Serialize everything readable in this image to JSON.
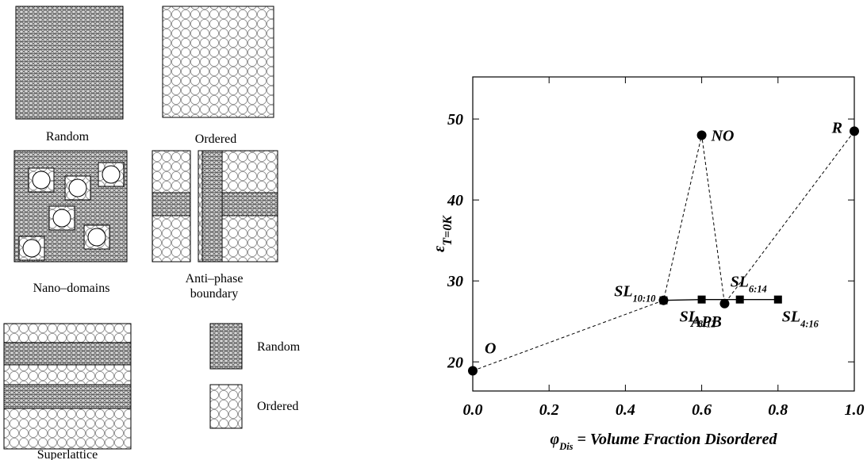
{
  "diagram": {
    "panels": [
      {
        "label": "Random"
      },
      {
        "label": "Ordered"
      },
      {
        "label": "Nano–domains"
      },
      {
        "label": [
          "Anti–phase",
          "boundary"
        ]
      },
      {
        "label": "Superlattice"
      }
    ],
    "legend": [
      "Random",
      "Ordered"
    ]
  },
  "chart_data": {
    "type": "line",
    "x_label": {
      "text": "φ",
      "sub": "Dis",
      "rest": " = Volume Fraction Disordered"
    },
    "y_label": {
      "text": "ε",
      "sub": "T=0K"
    },
    "xlim": [
      0,
      1
    ],
    "ylim": [
      16.4,
      55.2
    ],
    "xticks": [
      {
        "value": 0,
        "label": "0.0"
      },
      0.2,
      0.4,
      0.6,
      0.8,
      {
        "value": 1,
        "label": "1.0"
      }
    ],
    "yticks": [
      20,
      30,
      40,
      50
    ],
    "series": [
      {
        "style": "dashed",
        "marker": "circle",
        "color": "#000000",
        "x": [
          0,
          0.5,
          0.6,
          0.66,
          1.0
        ],
        "values": [
          18.9,
          27.6,
          48,
          27.2,
          48.5
        ],
        "point_labels": [
          {
            "text": "O"
          },
          {
            "text": "SL",
            "sub": "10:10"
          },
          {
            "text": "NO"
          },
          {
            "text": "APB"
          },
          {
            "text": "R"
          }
        ]
      },
      {
        "style": "solid",
        "marker": "square",
        "color": "#000000",
        "x": [
          0.5,
          0.6,
          0.7,
          0.8
        ],
        "values": [
          27.6,
          27.7,
          27.7,
          27.7
        ],
        "point_labels": [
          null,
          {
            "text": "SL",
            "sub": "8:12"
          },
          {
            "text": "SL",
            "sub": "6:14"
          },
          {
            "text": "SL",
            "sub": "4:16"
          }
        ]
      }
    ]
  }
}
